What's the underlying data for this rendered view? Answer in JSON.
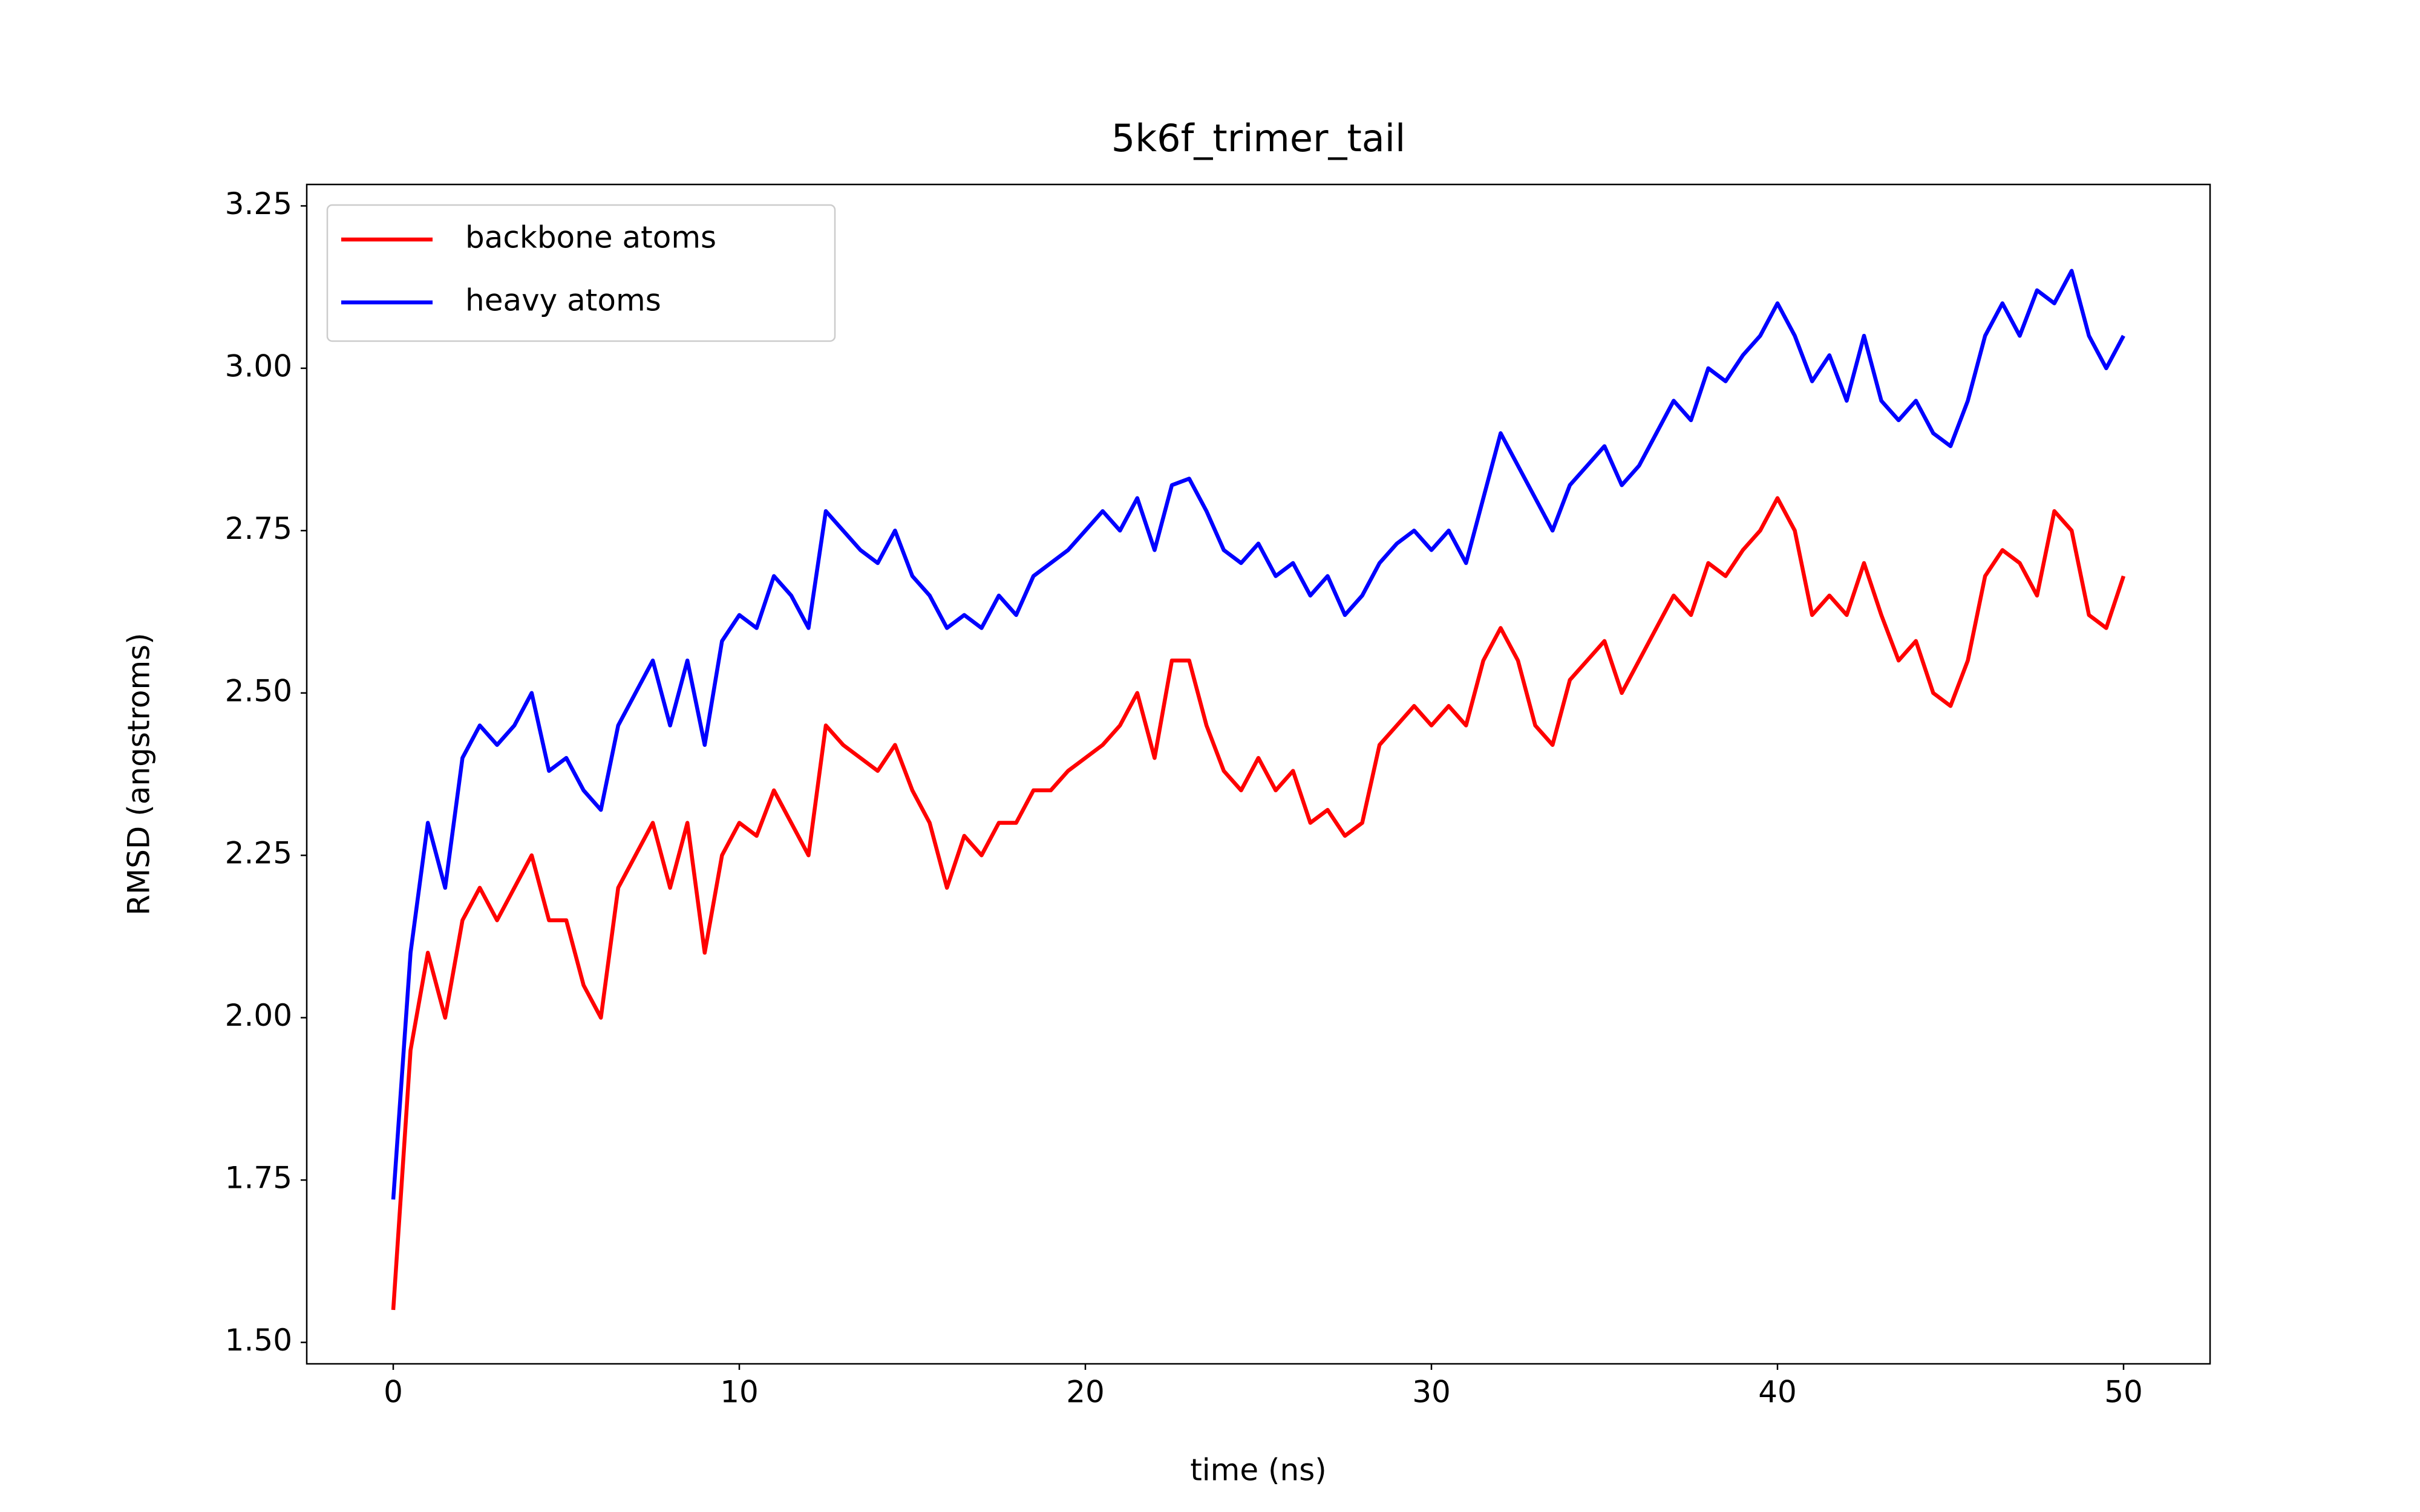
{
  "chart_data": {
    "type": "line",
    "title": "5k6f_trimer_tail",
    "x_label": "time (ns)",
    "y_label": "RMSD (angstroms)",
    "x": [
      0,
      0.5,
      1,
      1.5,
      2,
      2.5,
      3,
      3.5,
      4,
      4.5,
      5,
      5.5,
      6,
      6.5,
      7,
      7.5,
      8,
      8.5,
      9,
      9.5,
      10,
      10.5,
      11,
      11.5,
      12,
      12.5,
      13,
      13.5,
      14,
      14.5,
      15,
      15.5,
      16,
      16.5,
      17,
      17.5,
      18,
      18.5,
      19,
      19.5,
      20,
      20.5,
      21,
      21.5,
      22,
      22.5,
      23,
      23.5,
      24,
      24.5,
      25,
      25.5,
      26,
      26.5,
      27,
      27.5,
      28,
      28.5,
      29,
      29.5,
      30,
      30.5,
      31,
      31.5,
      32,
      32.5,
      33,
      33.5,
      34,
      34.5,
      35,
      35.5,
      36,
      36.5,
      37,
      37.5,
      38,
      38.5,
      39,
      39.5,
      40,
      40.5,
      41,
      41.5,
      42,
      42.5,
      43,
      43.5,
      44,
      44.5,
      45,
      45.5,
      46,
      46.5,
      47,
      47.5,
      48,
      48.5,
      49,
      49.5,
      50
    ],
    "series": [
      {
        "name": "backbone atoms",
        "color": "#ff0000",
        "values": [
          1.55,
          1.95,
          2.1,
          2.0,
          2.15,
          2.2,
          2.15,
          2.2,
          2.25,
          2.15,
          2.15,
          2.05,
          2.0,
          2.2,
          2.25,
          2.3,
          2.2,
          2.3,
          2.1,
          2.25,
          2.3,
          2.28,
          2.35,
          2.3,
          2.25,
          2.45,
          2.42,
          2.4,
          2.38,
          2.42,
          2.35,
          2.3,
          2.2,
          2.28,
          2.25,
          2.3,
          2.3,
          2.35,
          2.35,
          2.38,
          2.4,
          2.42,
          2.45,
          2.5,
          2.4,
          2.55,
          2.55,
          2.45,
          2.38,
          2.35,
          2.4,
          2.35,
          2.38,
          2.3,
          2.32,
          2.28,
          2.3,
          2.42,
          2.45,
          2.48,
          2.45,
          2.48,
          2.45,
          2.55,
          2.6,
          2.55,
          2.45,
          2.42,
          2.52,
          2.55,
          2.58,
          2.5,
          2.55,
          2.6,
          2.65,
          2.62,
          2.7,
          2.68,
          2.72,
          2.75,
          2.8,
          2.75,
          2.62,
          2.65,
          2.62,
          2.7,
          2.62,
          2.55,
          2.58,
          2.5,
          2.48,
          2.55,
          2.68,
          2.72,
          2.7,
          2.65,
          2.78,
          2.75,
          2.62,
          2.6,
          2.68
        ]
      },
      {
        "name": "heavy atoms",
        "color": "#0000ff",
        "values": [
          1.72,
          2.1,
          2.3,
          2.2,
          2.4,
          2.45,
          2.42,
          2.45,
          2.5,
          2.38,
          2.4,
          2.35,
          2.32,
          2.45,
          2.5,
          2.55,
          2.45,
          2.55,
          2.42,
          2.58,
          2.62,
          2.6,
          2.68,
          2.65,
          2.6,
          2.78,
          2.75,
          2.72,
          2.7,
          2.75,
          2.68,
          2.65,
          2.6,
          2.62,
          2.6,
          2.65,
          2.62,
          2.68,
          2.7,
          2.72,
          2.75,
          2.78,
          2.75,
          2.8,
          2.72,
          2.82,
          2.83,
          2.78,
          2.72,
          2.7,
          2.73,
          2.68,
          2.7,
          2.65,
          2.68,
          2.62,
          2.65,
          2.7,
          2.73,
          2.75,
          2.72,
          2.75,
          2.7,
          2.8,
          2.9,
          2.85,
          2.8,
          2.75,
          2.82,
          2.85,
          2.88,
          2.82,
          2.85,
          2.9,
          2.95,
          2.92,
          3.0,
          2.98,
          3.02,
          3.05,
          3.1,
          3.05,
          2.98,
          3.02,
          2.95,
          3.05,
          2.95,
          2.92,
          2.95,
          2.9,
          2.88,
          2.95,
          3.05,
          3.1,
          3.05,
          3.12,
          3.1,
          3.15,
          3.05,
          3.0,
          3.05
        ]
      }
    ],
    "xlim": [
      -2.5,
      52.5
    ],
    "ylim": [
      1.467,
      3.283
    ],
    "xticks": [
      0,
      10,
      20,
      30,
      40,
      50
    ],
    "yticks": [
      {
        "value": 1.5,
        "label": "1.50"
      },
      1.75,
      {
        "value": 2.0,
        "label": "2.00"
      },
      2.25,
      {
        "value": 2.5,
        "label": "2.50"
      },
      2.75,
      {
        "value": 3.0,
        "label": "3.00"
      },
      3.25
    ],
    "legend": "upper left"
  }
}
